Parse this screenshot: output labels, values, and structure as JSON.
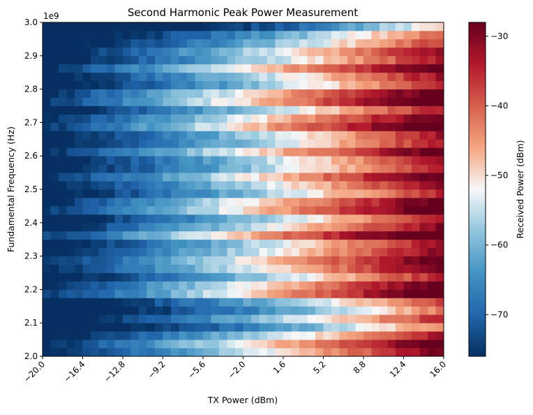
{
  "chart_data": {
    "type": "heatmap",
    "title": "Second Harmonic Peak Power Measurement",
    "xlabel": "TX Power (dBm)",
    "ylabel": "Fundamental Frequency (Hz)",
    "y_offset_label": "1e9",
    "colorbar_label": "Received Power (dBm)",
    "colormap": "RdBu_r",
    "x_range": [
      -20.0,
      16.0
    ],
    "y_range": [
      2.0,
      3.0
    ],
    "y_scale": 1000000000.0,
    "color_range": [
      -76,
      -28
    ],
    "x_ticks": [
      "−20.0",
      "−16.4",
      "−12.8",
      "−9.2",
      "−5.6",
      "−2.0",
      "1.6",
      "5.2",
      "8.8",
      "12.4",
      "16.0"
    ],
    "y_ticks": [
      "2.0",
      "2.1",
      "2.2",
      "2.3",
      "2.4",
      "2.5",
      "2.6",
      "2.7",
      "2.8",
      "2.9",
      "3.0"
    ],
    "colorbar_ticks": [
      "−30",
      "−40",
      "−50",
      "−60",
      "−70"
    ],
    "colorbar_tick_values": [
      -30,
      -40,
      -50,
      -60,
      -70
    ],
    "grid": false,
    "x_bins": 50,
    "y_bins": 40,
    "value_model": "Received power rises roughly from -76 dBm at -20 dBm TX power to about -30 dBm at 16 dBm TX power, with horizontal striping across frequency; dark low-power bands near 2.08-2.12 GHz and 2.92-3.00 GHz"
  }
}
